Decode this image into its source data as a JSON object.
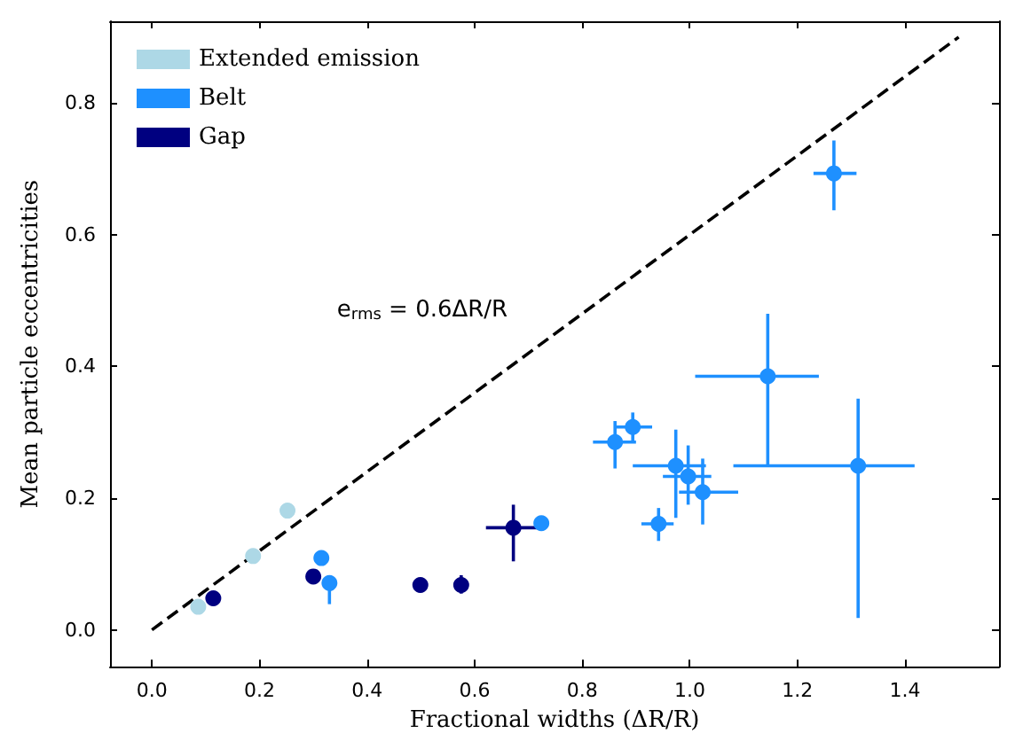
{
  "chart_data": {
    "type": "scatter",
    "xlabel": "Fractional widths (ΔR/R)",
    "ylabel": "Mean particle eccentricities",
    "xlim": [
      -0.078,
      1.575
    ],
    "ylim": [
      -0.056,
      0.924
    ],
    "xticks": [
      {
        "value": 0,
        "label": "0.0"
      },
      {
        "value": 0.2,
        "label": "0.2"
      },
      {
        "value": 0.4,
        "label": "0.4"
      },
      {
        "value": 0.6,
        "label": "0.6"
      },
      {
        "value": 0.8,
        "label": "0.8"
      },
      {
        "value": 1,
        "label": "1.0"
      },
      {
        "value": 1.2,
        "label": "1.2"
      },
      {
        "value": 1.4,
        "label": "1.4"
      }
    ],
    "yticks": [
      {
        "value": 0,
        "label": "0.0"
      },
      {
        "value": 0.2,
        "label": "0.2"
      },
      {
        "value": 0.4,
        "label": "0.4"
      },
      {
        "value": 0.6,
        "label": "0.6"
      },
      {
        "value": 0.8,
        "label": "0.8"
      }
    ],
    "legend": "top left",
    "grid": false,
    "marker": "circle",
    "annotations": [
      "e$_{rms}$ = 0.6ΔR/R"
    ],
    "series": [
      {
        "type": "line",
        "color": "#000000",
        "line_style": "dashed",
        "marker": "none",
        "x": [
          0,
          1.5
        ],
        "values": [
          0,
          0.9
        ]
      },
      {
        "name": "Extended emission",
        "color": "#add8e6",
        "x": [
          0.086,
          0.188,
          0.252
        ],
        "values": [
          0.035,
          0.112,
          0.181
        ]
      },
      {
        "name": "Belt",
        "color": "#1e90ff",
        "x": [
          0.315,
          0.33,
          0.724,
          0.861,
          0.894,
          0.974,
          0.997,
          1.024,
          0.942,
          1.313,
          1.145,
          1.268
        ],
        "values": [
          0.109,
          0.071,
          0.162,
          0.285,
          0.308,
          0.249,
          0.233,
          0.209,
          0.161,
          0.249,
          0.385,
          0.693
        ],
        "errors": [
          null,
          [
            0.039,
            0.075
          ],
          null,
          [
            0.245,
            0.317
          ],
          [
            0.285,
            0.33
          ],
          [
            0.17,
            0.304
          ],
          [
            0.19,
            0.28
          ],
          [
            0.16,
            0.26
          ],
          [
            0.135,
            0.185
          ],
          [
            0.018,
            0.351
          ],
          [
            0.25,
            0.48
          ],
          [
            0.637,
            0.743
          ]
        ],
        "xerrors": [
          null,
          null,
          null,
          [
            0.82,
            0.9
          ],
          [
            0.86,
            0.93
          ],
          [
            0.894,
            1.03
          ],
          [
            0.95,
            1.04
          ],
          [
            0.98,
            1.09
          ],
          [
            0.91,
            0.97
          ],
          [
            1.081,
            1.418
          ],
          [
            1.01,
            1.24
          ],
          [
            1.23,
            1.31
          ]
        ]
      },
      {
        "name": "Gap",
        "color": "#000080",
        "x": [
          0.114,
          0.3,
          0.499,
          0.575,
          0.672
        ],
        "values": [
          0.048,
          0.081,
          0.068,
          0.068,
          0.155
        ],
        "errors": [
          null,
          [
            0.07,
            0.09
          ],
          null,
          [
            0.055,
            0.083
          ],
          [
            0.104,
            0.19
          ]
        ],
        "xerrors": [
          null,
          null,
          null,
          [
            0.567,
            0.583
          ],
          [
            0.621,
            0.72
          ]
        ]
      }
    ]
  }
}
